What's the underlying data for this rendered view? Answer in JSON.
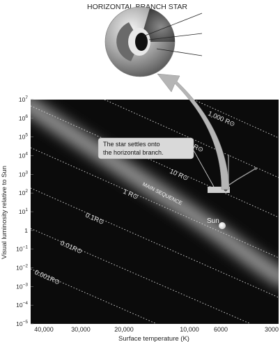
{
  "title": "HORIZONTAL BRANCH STAR",
  "x_axis": {
    "label": "Surface temperature (K)",
    "ticks": [
      "40,000",
      "30,000",
      "20,000",
      "10,000",
      "6000",
      "3000"
    ]
  },
  "y_axis": {
    "label": "Visual luminosity relative to Sun",
    "ticks": [
      {
        "base": "10",
        "exp": "7"
      },
      {
        "base": "10",
        "exp": "6"
      },
      {
        "base": "10",
        "exp": "5"
      },
      {
        "base": "10",
        "exp": "4"
      },
      {
        "base": "10",
        "exp": "3"
      },
      {
        "base": "10",
        "exp": "2"
      },
      {
        "base": "10",
        "exp": "1"
      },
      {
        "base": "1",
        "exp": ""
      },
      {
        "base": "10",
        "exp": "−1"
      },
      {
        "base": "10",
        "exp": "−2"
      },
      {
        "base": "10",
        "exp": "−3"
      },
      {
        "base": "10",
        "exp": "−4"
      },
      {
        "base": "10",
        "exp": "−5"
      }
    ]
  },
  "radius_lines": [
    {
      "label": "1,000 R⊙"
    },
    {
      "label": "100 R⊙"
    },
    {
      "label": "10 R⊙"
    },
    {
      "label": "1 R⊙"
    },
    {
      "label": "0.1R⊙"
    },
    {
      "label": "0.01R⊙"
    },
    {
      "label": "0.001R⊙"
    }
  ],
  "main_sequence_label": "MAIN SEQUENCE",
  "sun_label": "Sun",
  "callout": {
    "line1": "The star settles onto",
    "line2": "the horizontal branch."
  },
  "colors": {
    "plot_background": "#0b0b0b",
    "main_sequence": "#9a9a9a",
    "arrow": "#b5b5b5",
    "callout_fill": "#d9d9d9"
  }
}
